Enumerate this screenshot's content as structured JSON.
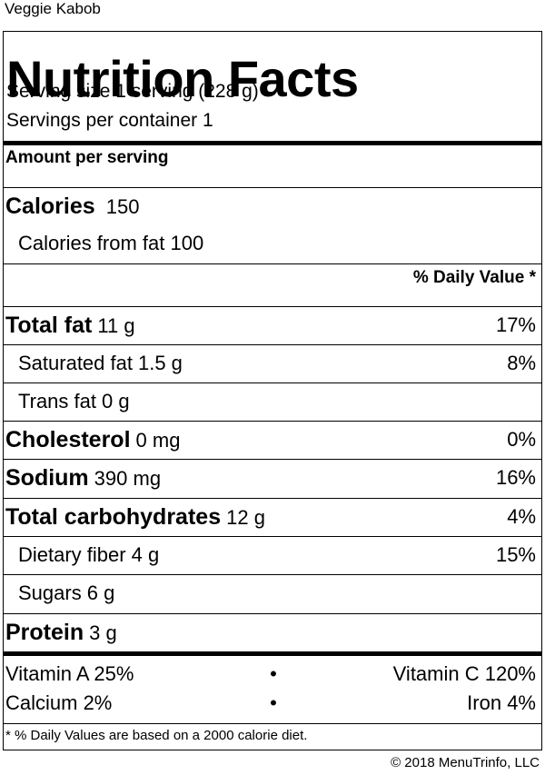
{
  "page_title": "Veggie Kabob",
  "label": {
    "title": "Nutrition Facts",
    "serving_size": "Serving size 1 serving (228 g)",
    "servings_per_container": "Servings per container 1",
    "amount_per_serving": "Amount per serving",
    "calories_label": "Calories",
    "calories_value": "150",
    "calories_from_fat": "Calories from fat 100",
    "daily_value_header": "% Daily Value *",
    "nutrients": [
      {
        "name": "Total fat",
        "amount": "11 g",
        "dv": "17%"
      },
      {
        "name": "Saturated fat",
        "amount": "1.5 g",
        "dv": "8%"
      },
      {
        "name": "Trans fat",
        "amount": "0 g",
        "dv": ""
      },
      {
        "name": "Cholesterol",
        "amount": "0 mg",
        "dv": "0%"
      },
      {
        "name": "Sodium",
        "amount": "390 mg",
        "dv": "16%"
      },
      {
        "name": "Total carbohydrates",
        "amount": "12 g",
        "dv": "4%"
      },
      {
        "name": "Dietary fiber",
        "amount": "4 g",
        "dv": "15%"
      },
      {
        "name": "Sugars",
        "amount": "6 g",
        "dv": ""
      },
      {
        "name": "Protein",
        "amount": "3 g",
        "dv": ""
      }
    ],
    "vitamins": [
      {
        "left": "Vitamin A 25%",
        "right": "Vitamin C 120%"
      },
      {
        "left": "Calcium 2%",
        "right": "Iron 4%"
      }
    ],
    "bullet": "•",
    "footnote": "* % Daily Values are based on a 2000 calorie diet."
  },
  "copyright": "© 2018 MenuTrinfo, LLC"
}
